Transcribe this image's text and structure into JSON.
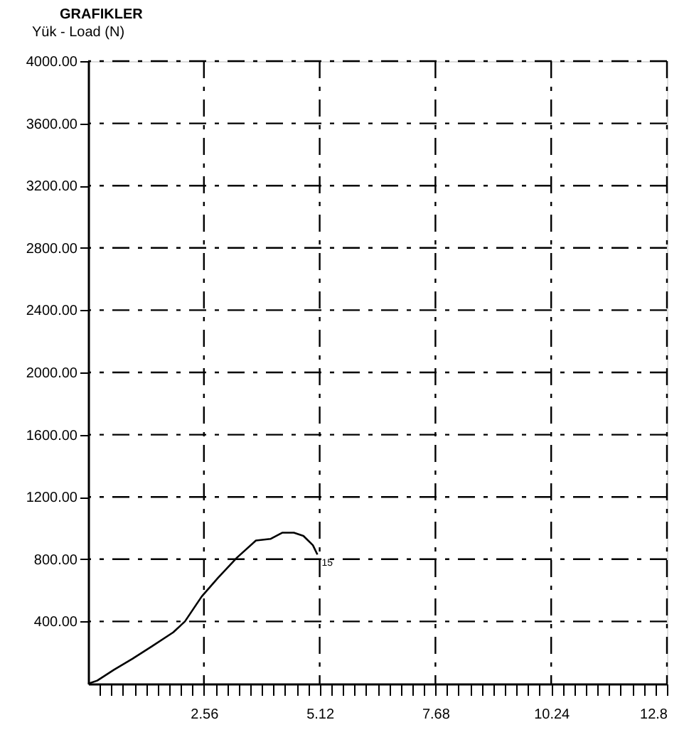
{
  "chart_data": {
    "type": "line",
    "title": "GRAFIKLER",
    "ylabel": "Yük - Load (N)",
    "x": [
      0,
      0.2,
      0.57,
      0.98,
      1.41,
      1.88,
      2.14,
      2.51,
      2.87,
      3.29,
      3.71,
      4.03,
      4.29,
      4.55,
      4.76,
      4.97,
      5.07
    ],
    "series": [
      {
        "color": "#000000",
        "values": [
          0,
          20,
          90,
          160,
          240,
          330,
          400,
          560,
          680,
          810,
          920,
          930,
          970,
          970,
          950,
          890,
          830
        ]
      }
    ],
    "xlim": [
      0,
      12.8
    ],
    "ylim": [
      0,
      4000
    ],
    "xticks": [
      {
        "value": 0.256,
        "label": null
      },
      {
        "value": 0.512,
        "label": null
      },
      {
        "value": 0.768,
        "label": null
      },
      {
        "value": 1.024,
        "label": null
      },
      {
        "value": 1.28,
        "label": null
      },
      {
        "value": 1.536,
        "label": null
      },
      {
        "value": 1.792,
        "label": null
      },
      {
        "value": 2.048,
        "label": null
      },
      {
        "value": 2.304,
        "label": null
      },
      2.56,
      {
        "value": 2.816,
        "label": null
      },
      {
        "value": 3.072,
        "label": null
      },
      {
        "value": 3.328,
        "label": null
      },
      {
        "value": 3.584,
        "label": null
      },
      {
        "value": 3.84,
        "label": null
      },
      {
        "value": 4.096,
        "label": null
      },
      {
        "value": 4.352,
        "label": null
      },
      {
        "value": 4.608,
        "label": null
      },
      {
        "value": 4.864,
        "label": null
      },
      5.12,
      {
        "value": 5.376,
        "label": null
      },
      {
        "value": 5.632,
        "label": null
      },
      {
        "value": 5.888,
        "label": null
      },
      {
        "value": 6.144,
        "label": null
      },
      {
        "value": 6.4,
        "label": null
      },
      {
        "value": 6.656,
        "label": null
      },
      {
        "value": 6.912,
        "label": null
      },
      {
        "value": 7.168,
        "label": null
      },
      {
        "value": 7.424,
        "label": null
      },
      7.68,
      {
        "value": 7.936,
        "label": null
      },
      {
        "value": 8.192,
        "label": null
      },
      {
        "value": 8.448,
        "label": null
      },
      {
        "value": 8.704,
        "label": null
      },
      {
        "value": 8.96,
        "label": null
      },
      {
        "value": 9.216,
        "label": null
      },
      {
        "value": 9.472,
        "label": null
      },
      {
        "value": 9.728,
        "label": null
      },
      {
        "value": 9.984,
        "label": null
      },
      10.24,
      {
        "value": 10.496,
        "label": null
      },
      {
        "value": 10.752,
        "label": null
      },
      {
        "value": 11.008,
        "label": null
      },
      {
        "value": 11.264,
        "label": null
      },
      {
        "value": 11.52,
        "label": null
      },
      {
        "value": 11.776,
        "label": null
      },
      {
        "value": 12.032,
        "label": null
      },
      {
        "value": 12.288,
        "label": null
      },
      {
        "value": 12.544,
        "label": null
      },
      12.8
    ],
    "yticks": [
      {
        "value": 400,
        "label": "400.00"
      },
      {
        "value": 800,
        "label": "800.00"
      },
      {
        "value": 1200,
        "label": "1200.00"
      },
      {
        "value": 1600,
        "label": "1600.00"
      },
      {
        "value": 2000,
        "label": "2000.00"
      },
      {
        "value": 2400,
        "label": "2400.00"
      },
      {
        "value": 2800,
        "label": "2800.00"
      },
      {
        "value": 3200,
        "label": "3200.00"
      },
      {
        "value": 3600,
        "label": "3600.00"
      },
      {
        "value": 4000,
        "label": "4000.00"
      }
    ],
    "grid": true,
    "marker": "none",
    "line_style": "solid",
    "annotations": [
      {
        "text": "15",
        "x": 5.07,
        "y": 830
      }
    ]
  }
}
